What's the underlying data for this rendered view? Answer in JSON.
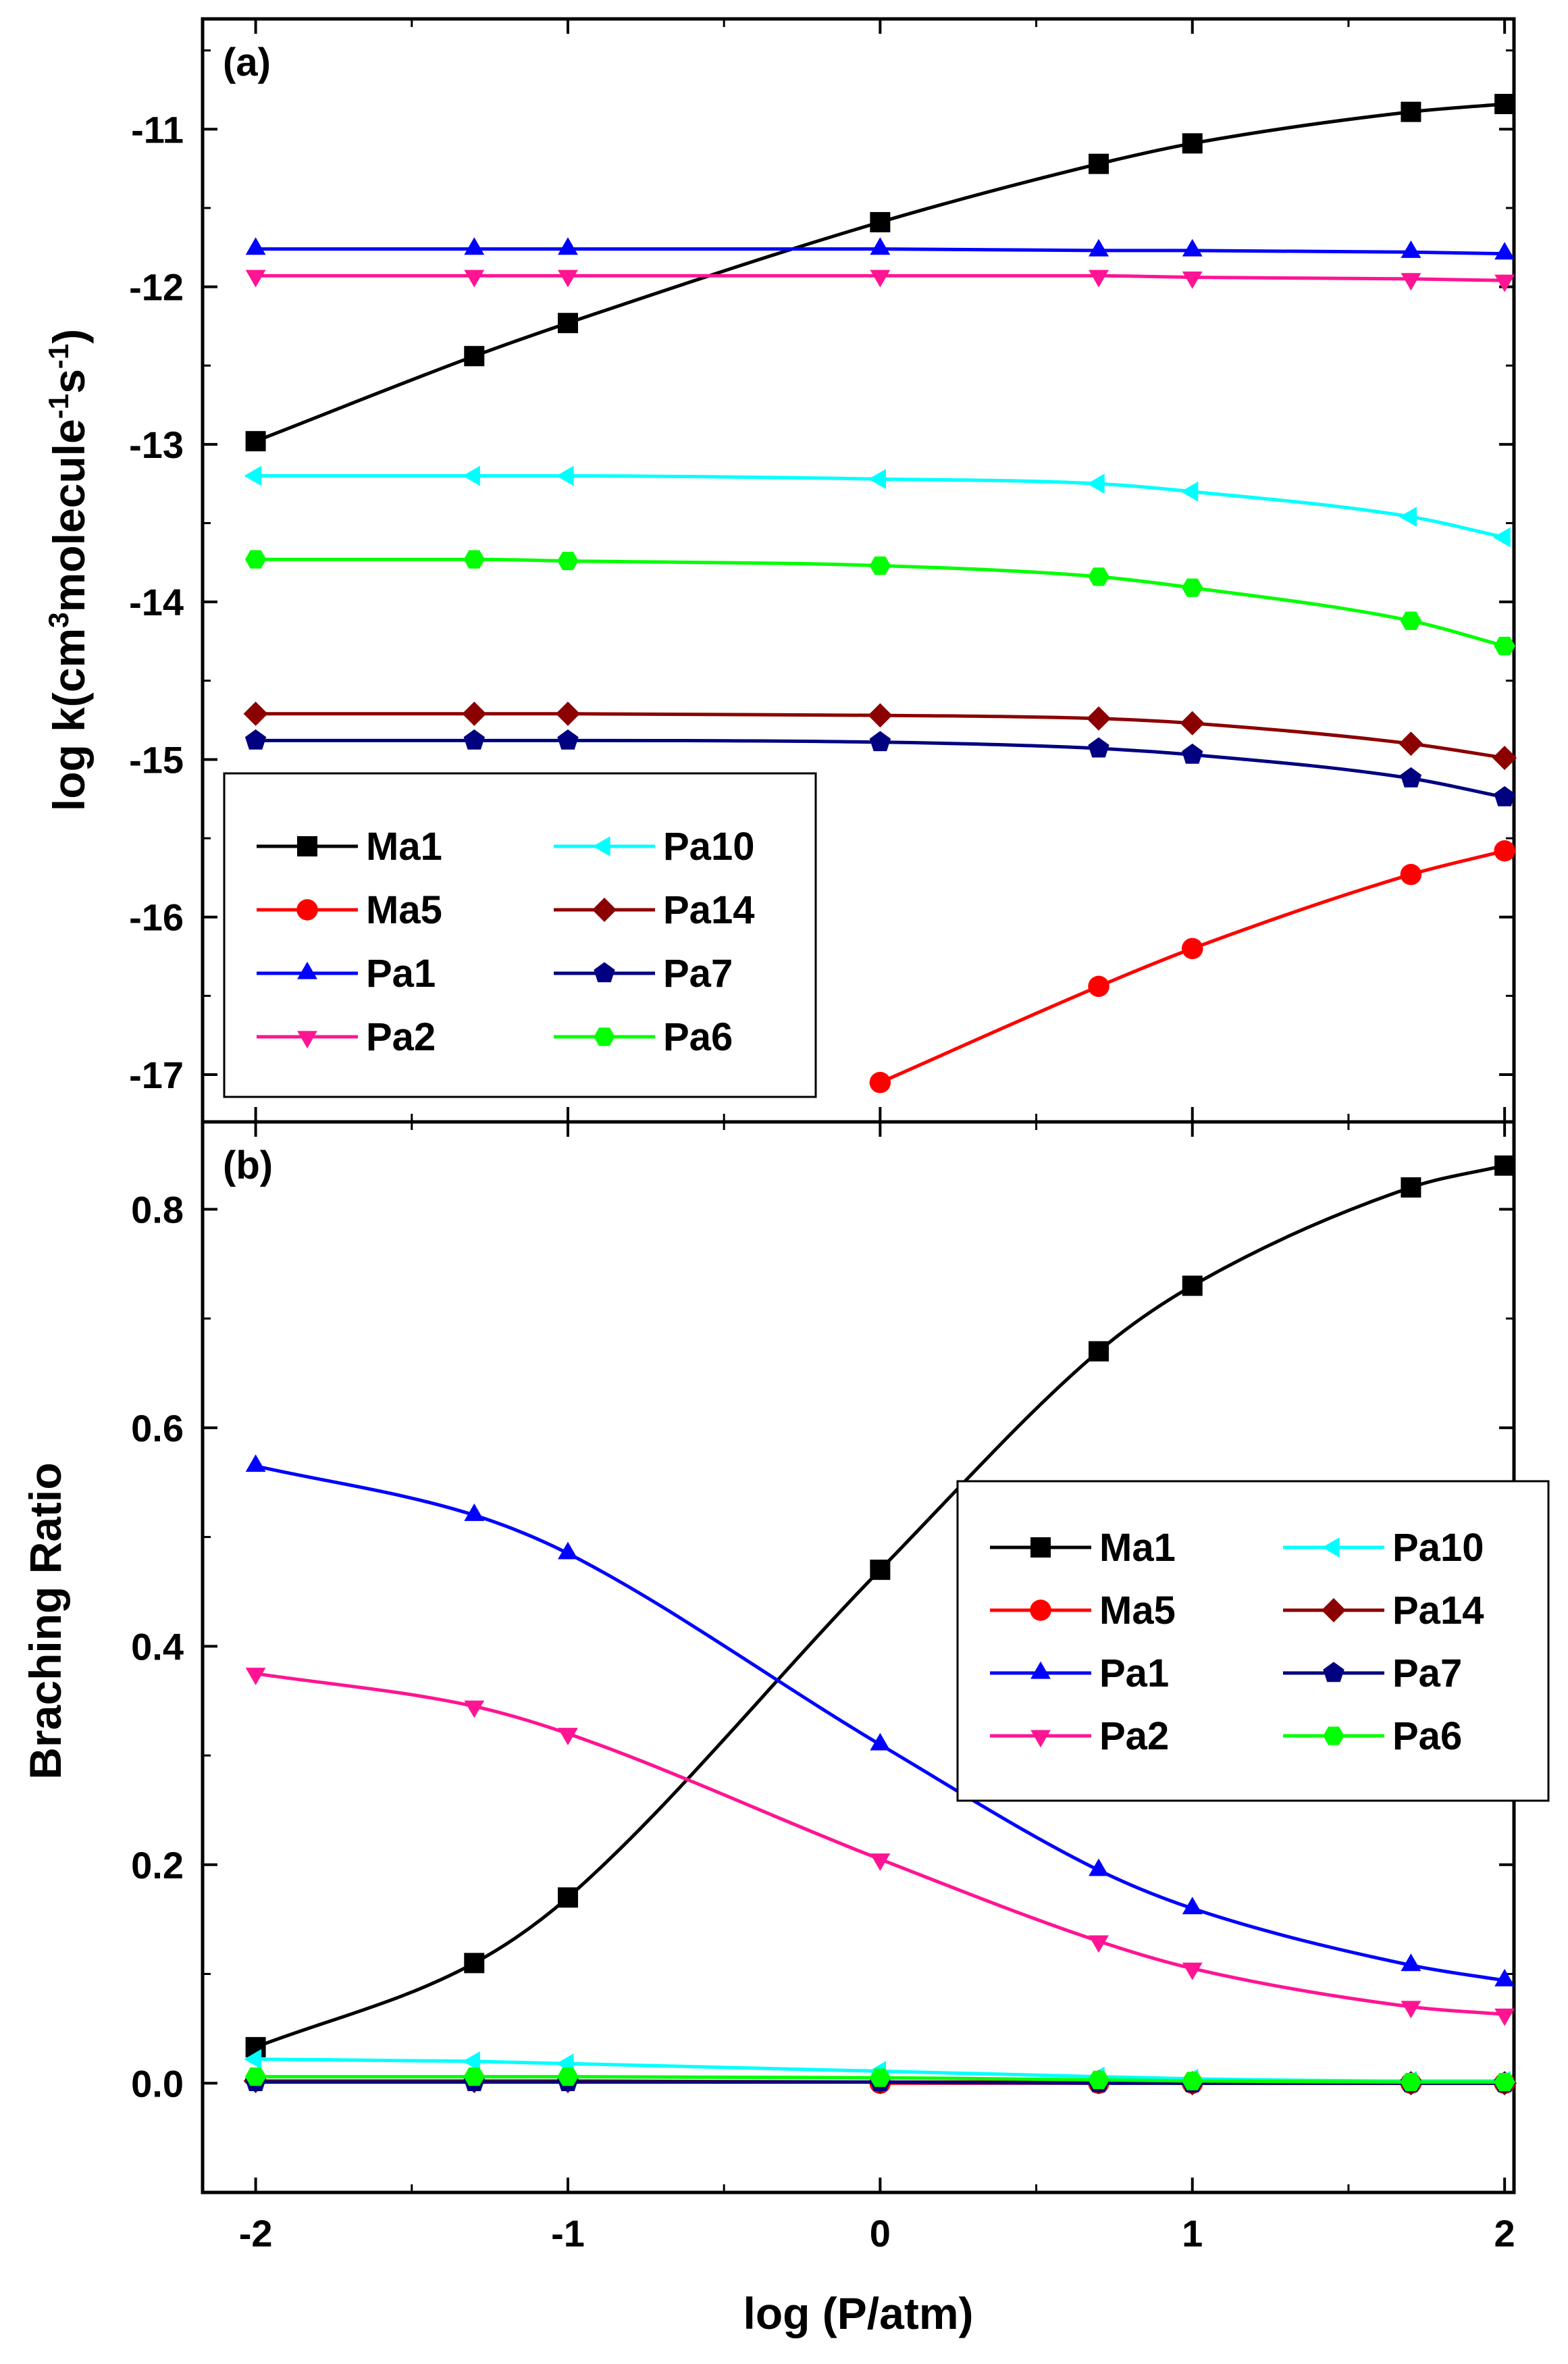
{
  "chart_data": [
    {
      "type": "line",
      "panel_label": "(a)",
      "xlabel": "log (P/atm)",
      "ylabel_main": "log k(cm",
      "ylabel_sup1": "3",
      "ylabel_mid": "molecule",
      "ylabel_sup2": "-1",
      "ylabel_s": "s",
      "ylabel_sup3": "-1",
      "ylabel_end": ")",
      "xlim": [
        -2.17,
        2.03
      ],
      "ylim": [
        -17.3,
        -10.3
      ],
      "xticks": [
        -2,
        -1,
        0,
        1,
        2
      ],
      "xtick_labels": [
        "-2",
        "-1",
        "0",
        "1",
        "2"
      ],
      "yticks": [
        -17,
        -16,
        -15,
        -14,
        -13,
        -12,
        -11
      ],
      "ytick_labels": [
        "-17",
        "-16",
        "-15",
        "-14",
        "-13",
        "-12",
        "-11"
      ],
      "legend_position": "lower-left",
      "series": [
        {
          "name": "Ma1",
          "color": "#000000",
          "marker": "square",
          "x": [
            -2,
            -1.3,
            -1,
            0,
            0.7,
            1,
            1.7,
            2
          ],
          "y": [
            -12.98,
            -12.44,
            -12.23,
            -11.59,
            -11.22,
            -11.09,
            -10.89,
            -10.84
          ]
        },
        {
          "name": "Ma5",
          "color": "#ff0000",
          "marker": "circle",
          "x": [
            0,
            0.7,
            1,
            1.7,
            2
          ],
          "y": [
            -17.05,
            -16.44,
            -16.2,
            -15.73,
            -15.58
          ]
        },
        {
          "name": "Pa1",
          "color": "#0000ff",
          "marker": "triangle-up",
          "x": [
            -2,
            -1.3,
            -1,
            0,
            0.7,
            1,
            1.7,
            2
          ],
          "y": [
            -11.76,
            -11.76,
            -11.76,
            -11.76,
            -11.77,
            -11.77,
            -11.78,
            -11.79
          ]
        },
        {
          "name": "Pa2",
          "color": "#ff1493",
          "marker": "triangle-down",
          "x": [
            -2,
            -1.3,
            -1,
            0,
            0.7,
            1,
            1.7,
            2
          ],
          "y": [
            -11.93,
            -11.93,
            -11.93,
            -11.93,
            -11.93,
            -11.94,
            -11.95,
            -11.96
          ]
        },
        {
          "name": "Pa10",
          "color": "#00ffff",
          "marker": "triangle-left",
          "x": [
            -2,
            -1.3,
            -1,
            0,
            0.7,
            1,
            1.7,
            2
          ],
          "y": [
            -13.2,
            -13.2,
            -13.2,
            -13.22,
            -13.25,
            -13.3,
            -13.46,
            -13.59
          ]
        },
        {
          "name": "Pa14",
          "color": "#8b0000",
          "marker": "diamond",
          "x": [
            -2,
            -1.3,
            -1,
            0,
            0.7,
            1,
            1.7,
            2
          ],
          "y": [
            -14.71,
            -14.71,
            -14.71,
            -14.72,
            -14.74,
            -14.77,
            -14.9,
            -14.99
          ]
        },
        {
          "name": "Pa7",
          "color": "#000080",
          "marker": "pentagon",
          "x": [
            -2,
            -1.3,
            -1,
            0,
            0.7,
            1,
            1.7,
            2
          ],
          "y": [
            -14.88,
            -14.88,
            -14.88,
            -14.89,
            -14.93,
            -14.97,
            -15.12,
            -15.24
          ]
        },
        {
          "name": "Pa6",
          "color": "#00ff00",
          "marker": "hexagon",
          "x": [
            -2,
            -1.3,
            -1,
            0,
            0.7,
            1,
            1.7,
            2
          ],
          "y": [
            -13.73,
            -13.73,
            -13.74,
            -13.77,
            -13.84,
            -13.91,
            -14.12,
            -14.28
          ]
        }
      ]
    },
    {
      "type": "line",
      "panel_label": "(b)",
      "xlabel": "log (P/atm)",
      "ylabel": "Braching Ratio",
      "xlim": [
        -2.17,
        2.03
      ],
      "ylim": [
        -0.1,
        0.88
      ],
      "xticks": [
        -2,
        -1,
        0,
        1,
        2
      ],
      "xtick_labels": [
        "-2",
        "-1",
        "0",
        "1",
        "2"
      ],
      "yticks": [
        0.0,
        0.2,
        0.4,
        0.6,
        0.8
      ],
      "ytick_labels": [
        "0.0",
        "0.2",
        "0.4",
        "0.6",
        "0.8"
      ],
      "legend_position": "center-right",
      "series": [
        {
          "name": "Ma1",
          "color": "#000000",
          "marker": "square",
          "x": [
            -2,
            -1.3,
            -1,
            0,
            0.7,
            1,
            1.7,
            2
          ],
          "y": [
            0.033,
            0.11,
            0.17,
            0.47,
            0.67,
            0.73,
            0.82,
            0.84
          ]
        },
        {
          "name": "Ma5",
          "color": "#ff0000",
          "marker": "circle",
          "x": [
            0,
            0.7,
            1,
            1.7,
            2
          ],
          "y": [
            0.0,
            0.0,
            0.0,
            0.0,
            0.0
          ]
        },
        {
          "name": "Pa1",
          "color": "#0000ff",
          "marker": "triangle-up",
          "x": [
            -2,
            -1.3,
            -1,
            0,
            0.7,
            1,
            1.7,
            2
          ],
          "y": [
            0.565,
            0.52,
            0.485,
            0.31,
            0.195,
            0.16,
            0.108,
            0.094
          ]
        },
        {
          "name": "Pa2",
          "color": "#ff1493",
          "marker": "triangle-down",
          "x": [
            -2,
            -1.3,
            -1,
            0,
            0.7,
            1,
            1.7,
            2
          ],
          "y": [
            0.375,
            0.345,
            0.32,
            0.205,
            0.13,
            0.105,
            0.07,
            0.063
          ]
        },
        {
          "name": "Pa10",
          "color": "#00ffff",
          "marker": "triangle-left",
          "x": [
            -2,
            -1.3,
            -1,
            0,
            0.7,
            1,
            1.7,
            2
          ],
          "y": [
            0.022,
            0.02,
            0.018,
            0.011,
            0.006,
            0.004,
            0.002,
            0.002
          ]
        },
        {
          "name": "Pa14",
          "color": "#8b0000",
          "marker": "diamond",
          "x": [
            -2,
            -1.3,
            -1,
            0,
            0.7,
            1,
            1.7,
            2
          ],
          "y": [
            0.002,
            0.002,
            0.002,
            0.001,
            0.001,
            0.0,
            0.0,
            0.0
          ]
        },
        {
          "name": "Pa7",
          "color": "#000080",
          "marker": "pentagon",
          "x": [
            -2,
            -1.3,
            -1,
            0,
            0.7,
            1,
            1.7,
            2
          ],
          "y": [
            0.001,
            0.001,
            0.001,
            0.001,
            0.0,
            0.0,
            0.0,
            0.0
          ]
        },
        {
          "name": "Pa6",
          "color": "#00ff00",
          "marker": "hexagon",
          "x": [
            -2,
            -1.3,
            -1,
            0,
            0.7,
            1,
            1.7,
            2
          ],
          "y": [
            0.006,
            0.006,
            0.006,
            0.005,
            0.003,
            0.002,
            0.001,
            0.001
          ]
        }
      ]
    }
  ]
}
